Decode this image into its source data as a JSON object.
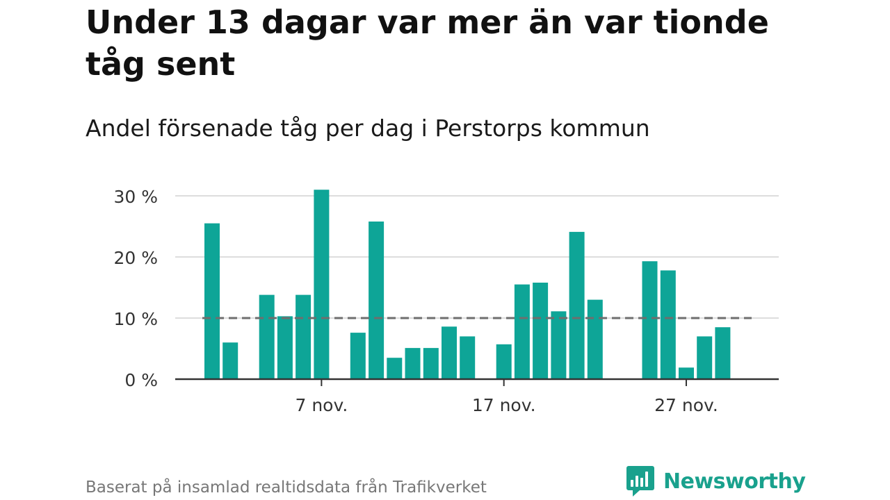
{
  "title": "Under 13 dagar var mer än var tionde tåg sent",
  "subtitle": "Andel försenade tåg per dag i Perstorps kommun",
  "footer": "Baserat på insamlad realtidsdata från Trafikverket",
  "brand": {
    "name": "Newsworthy",
    "icon": "newsworthy-logo-icon",
    "color": "#19a18d"
  },
  "chart_data": {
    "type": "bar",
    "title": "Under 13 dagar var mer än var tionde tåg sent",
    "subtitle": "Andel försenade tåg per dag i Perstorps kommun",
    "xlabel": "",
    "ylabel": "",
    "x_unit": "day of November",
    "x": [
      1,
      2,
      3,
      4,
      5,
      6,
      7,
      8,
      9,
      10,
      11,
      12,
      13,
      14,
      15,
      16,
      17,
      18,
      19,
      20,
      21,
      22,
      23,
      24,
      25,
      26,
      27,
      28,
      29,
      30
    ],
    "values": [
      25.5,
      6.0,
      null,
      13.8,
      10.3,
      13.8,
      31.0,
      null,
      7.6,
      25.8,
      3.5,
      5.1,
      5.1,
      8.6,
      7.0,
      null,
      5.7,
      15.5,
      15.8,
      11.1,
      24.1,
      13.0,
      null,
      null,
      19.3,
      17.8,
      1.9,
      7.0,
      8.5,
      null
    ],
    "ylim": [
      0,
      30
    ],
    "yticks": [
      0,
      10,
      20,
      30
    ],
    "ytick_labels": [
      "0 %",
      "10 %",
      "20 %",
      "30 %"
    ],
    "xticks": [
      7,
      17,
      27
    ],
    "xtick_labels": [
      "7 nov.",
      "17 nov.",
      "27 nov."
    ],
    "reference_line": 10,
    "grid": true,
    "legend": "none",
    "bar_color": "#0ea597",
    "reference_line_color": "#6e6e6e"
  }
}
